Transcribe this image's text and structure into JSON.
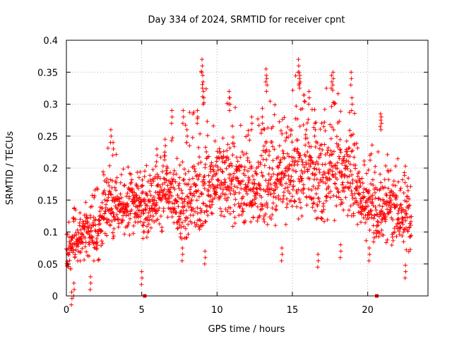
{
  "chart_data": {
    "type": "scatter",
    "title": "Day 334 of 2024, SRMTID for receiver cpnt",
    "xlabel": "GPS time / hours",
    "ylabel": "SRMTID / TECUs",
    "xlim": [
      0,
      24
    ],
    "ylim": [
      0,
      0.4
    ],
    "xticks": [
      0,
      5,
      10,
      15,
      20
    ],
    "xtick_labels": [
      "0",
      "5",
      "10",
      "15",
      "20"
    ],
    "yticks": [
      0,
      0.05,
      0.1,
      0.15,
      0.2,
      0.25,
      0.3,
      0.35,
      0.4
    ],
    "ytick_labels": [
      "0",
      "0.05",
      "0.1",
      "0.15",
      "0.2",
      "0.25",
      "0.3",
      "0.35",
      "0.4"
    ],
    "grid": true,
    "marker": "+",
    "series_color": "#ff0000",
    "sampling": "envelope of ~2000 points sampled every ~0.01 h",
    "envelope": {
      "x": [
        0,
        0.5,
        1,
        1.5,
        2,
        2.5,
        3,
        3.5,
        4,
        4.5,
        5,
        5.5,
        6,
        6.5,
        7,
        7.5,
        8,
        8.5,
        9,
        9.5,
        10,
        10.5,
        11,
        11.5,
        12,
        12.5,
        13,
        13.5,
        14,
        14.5,
        15,
        15.5,
        16,
        16.5,
        17,
        17.5,
        18,
        18.5,
        19,
        19.5,
        20,
        20.5,
        21,
        21.5,
        22,
        22.5,
        22.9
      ],
      "low": [
        0.03,
        0.04,
        0.05,
        0.06,
        0.05,
        0.07,
        0.09,
        0.09,
        0.08,
        0.09,
        0.08,
        0.09,
        0.09,
        0.1,
        0.1,
        0.09,
        0.09,
        0.1,
        0.1,
        0.11,
        0.12,
        0.12,
        0.11,
        0.11,
        0.11,
        0.1,
        0.11,
        0.11,
        0.11,
        0.11,
        0.12,
        0.12,
        0.12,
        0.11,
        0.1,
        0.11,
        0.12,
        0.12,
        0.12,
        0.1,
        0.08,
        0.08,
        0.08,
        0.08,
        0.07,
        0.07,
        0.06
      ],
      "mid": [
        0.06,
        0.08,
        0.09,
        0.1,
        0.09,
        0.13,
        0.15,
        0.14,
        0.14,
        0.15,
        0.14,
        0.14,
        0.15,
        0.16,
        0.16,
        0.15,
        0.14,
        0.16,
        0.17,
        0.18,
        0.19,
        0.18,
        0.18,
        0.17,
        0.17,
        0.16,
        0.18,
        0.18,
        0.18,
        0.19,
        0.2,
        0.2,
        0.2,
        0.19,
        0.18,
        0.2,
        0.2,
        0.2,
        0.19,
        0.16,
        0.14,
        0.14,
        0.14,
        0.15,
        0.13,
        0.13,
        0.11
      ],
      "high": [
        0.13,
        0.14,
        0.15,
        0.16,
        0.17,
        0.2,
        0.26,
        0.21,
        0.2,
        0.21,
        0.2,
        0.21,
        0.21,
        0.25,
        0.25,
        0.29,
        0.29,
        0.3,
        0.37,
        0.3,
        0.28,
        0.3,
        0.32,
        0.28,
        0.28,
        0.25,
        0.35,
        0.32,
        0.3,
        0.3,
        0.37,
        0.35,
        0.3,
        0.3,
        0.31,
        0.35,
        0.35,
        0.3,
        0.35,
        0.25,
        0.2,
        0.28,
        0.22,
        0.23,
        0.22,
        0.22,
        0.17
      ]
    },
    "spikes": [
      {
        "x": 0.35,
        "y": 0.006
      },
      {
        "x": 0.5,
        "y": 0.02
      },
      {
        "x": 0.9,
        "y": 0.13
      },
      {
        "x": 1.6,
        "y": 0.03
      },
      {
        "x": 2.95,
        "y": 0.26
      },
      {
        "x": 3.1,
        "y": 0.24
      },
      {
        "x": 4.65,
        "y": 0.15
      },
      {
        "x": 5.1,
        "y": 0.11
      },
      {
        "x": 6.0,
        "y": 0.23
      },
      {
        "x": 6.55,
        "y": 0.245
      },
      {
        "x": 7.0,
        "y": 0.29
      },
      {
        "x": 7.75,
        "y": 0.29
      },
      {
        "x": 8.0,
        "y": 0.26
      },
      {
        "x": 8.7,
        "y": 0.29
      },
      {
        "x": 9.0,
        "y": 0.37
      },
      {
        "x": 9.05,
        "y": 0.345
      },
      {
        "x": 9.1,
        "y": 0.32
      },
      {
        "x": 10.8,
        "y": 0.32
      },
      {
        "x": 10.85,
        "y": 0.31
      },
      {
        "x": 12.3,
        "y": 0.28
      },
      {
        "x": 13.0,
        "y": 0.28
      },
      {
        "x": 13.25,
        "y": 0.355
      },
      {
        "x": 13.3,
        "y": 0.34
      },
      {
        "x": 15.4,
        "y": 0.37
      },
      {
        "x": 15.45,
        "y": 0.35
      },
      {
        "x": 15.5,
        "y": 0.345
      },
      {
        "x": 16.1,
        "y": 0.32
      },
      {
        "x": 16.5,
        "y": 0.27
      },
      {
        "x": 17.6,
        "y": 0.345
      },
      {
        "x": 17.7,
        "y": 0.35
      },
      {
        "x": 18.9,
        "y": 0.35
      },
      {
        "x": 18.95,
        "y": 0.31
      },
      {
        "x": 20.1,
        "y": 0.075
      },
      {
        "x": 20.85,
        "y": 0.285
      },
      {
        "x": 20.9,
        "y": 0.28
      },
      {
        "x": 22.5,
        "y": 0.048
      },
      {
        "x": 5.0,
        "y": 0.038
      },
      {
        "x": 14.3,
        "y": 0.075
      },
      {
        "x": 16.7,
        "y": 0.065
      },
      {
        "x": 18.2,
        "y": 0.08
      },
      {
        "x": 9.2,
        "y": 0.07
      },
      {
        "x": 7.7,
        "y": 0.075
      }
    ],
    "axis_markers": [
      {
        "x": 5.2,
        "y": 0
      },
      {
        "x": 20.6,
        "y": 0
      }
    ]
  }
}
